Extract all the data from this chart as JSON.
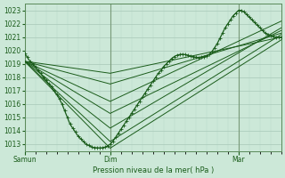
{
  "background_color": "#cce8d8",
  "grid_color_major": "#a8c8b8",
  "grid_color_minor": "#b8d8c8",
  "line_color": "#1a5c1a",
  "xlabel": "Pression niveau de la mer( hPa )",
  "ylim": [
    1012.5,
    1023.5
  ],
  "yticks": [
    1013,
    1014,
    1015,
    1016,
    1017,
    1018,
    1019,
    1020,
    1021,
    1022,
    1023
  ],
  "xlim": [
    0,
    48
  ],
  "xtick_positions": [
    0,
    16,
    40
  ],
  "xtick_labels": [
    "Samun",
    "Dim",
    "Mar"
  ],
  "fan_lines": [
    {
      "x": [
        0,
        16,
        48
      ],
      "y": [
        1019.2,
        1012.7,
        1020.8
      ]
    },
    {
      "x": [
        0,
        16,
        48
      ],
      "y": [
        1019.2,
        1013.2,
        1021.2
      ]
    },
    {
      "x": [
        0,
        16,
        48
      ],
      "y": [
        1019.2,
        1014.2,
        1021.7
      ]
    },
    {
      "x": [
        0,
        16,
        48
      ],
      "y": [
        1019.2,
        1015.3,
        1021.5
      ]
    },
    {
      "x": [
        0,
        16,
        48
      ],
      "y": [
        1019.2,
        1016.2,
        1022.2
      ]
    },
    {
      "x": [
        0,
        16,
        48
      ],
      "y": [
        1019.2,
        1017.5,
        1021.3
      ]
    },
    {
      "x": [
        0,
        16,
        48
      ],
      "y": [
        1019.2,
        1018.3,
        1021.0
      ]
    }
  ],
  "main_x": [
    0,
    0.5,
    1,
    1.5,
    2,
    2.5,
    3,
    3.5,
    4,
    4.5,
    5,
    5.5,
    6,
    6.5,
    7,
    7.5,
    8,
    8.5,
    9,
    9.5,
    10,
    10.5,
    11,
    11.5,
    12,
    12.5,
    13,
    13.5,
    14,
    14.5,
    15,
    15.5,
    16,
    16.5,
    17,
    17.5,
    18,
    18.5,
    19,
    19.5,
    20,
    20.5,
    21,
    21.5,
    22,
    22.5,
    23,
    23.5,
    24,
    24.5,
    25,
    25.5,
    26,
    26.5,
    27,
    27.5,
    28,
    28.5,
    29,
    29.5,
    30,
    30.5,
    31,
    31.5,
    32,
    32.5,
    33,
    33.5,
    34,
    34.5,
    35,
    35.5,
    36,
    36.5,
    37,
    37.5,
    38,
    38.5,
    39,
    39.5,
    40,
    40.5,
    41,
    41.5,
    42,
    42.5,
    43,
    43.5,
    44,
    44.5,
    45,
    45.5,
    46,
    46.5,
    47,
    47.5,
    48
  ],
  "main_y": [
    1019.8,
    1019.5,
    1019.2,
    1019.0,
    1018.8,
    1018.5,
    1018.3,
    1018.0,
    1017.8,
    1017.5,
    1017.3,
    1017.0,
    1016.7,
    1016.4,
    1016.0,
    1015.5,
    1015.0,
    1014.5,
    1014.2,
    1013.9,
    1013.6,
    1013.4,
    1013.2,
    1013.0,
    1012.9,
    1012.8,
    1012.75,
    1012.73,
    1012.72,
    1012.73,
    1012.78,
    1012.85,
    1013.0,
    1013.2,
    1013.5,
    1013.8,
    1014.1,
    1014.4,
    1014.7,
    1015.0,
    1015.3,
    1015.6,
    1015.9,
    1016.2,
    1016.5,
    1016.8,
    1017.1,
    1017.4,
    1017.7,
    1018.0,
    1018.3,
    1018.5,
    1018.8,
    1019.0,
    1019.2,
    1019.4,
    1019.55,
    1019.65,
    1019.7,
    1019.72,
    1019.7,
    1019.65,
    1019.6,
    1019.55,
    1019.5,
    1019.48,
    1019.5,
    1019.55,
    1019.6,
    1019.7,
    1019.9,
    1020.2,
    1020.5,
    1020.9,
    1021.3,
    1021.7,
    1022.0,
    1022.3,
    1022.6,
    1022.8,
    1023.0,
    1023.0,
    1022.9,
    1022.7,
    1022.5,
    1022.3,
    1022.1,
    1021.9,
    1021.7,
    1021.5,
    1021.3,
    1021.2,
    1021.1,
    1021.05,
    1021.0,
    1020.98,
    1021.0
  ],
  "figsize": [
    3.2,
    2.0
  ],
  "dpi": 100
}
